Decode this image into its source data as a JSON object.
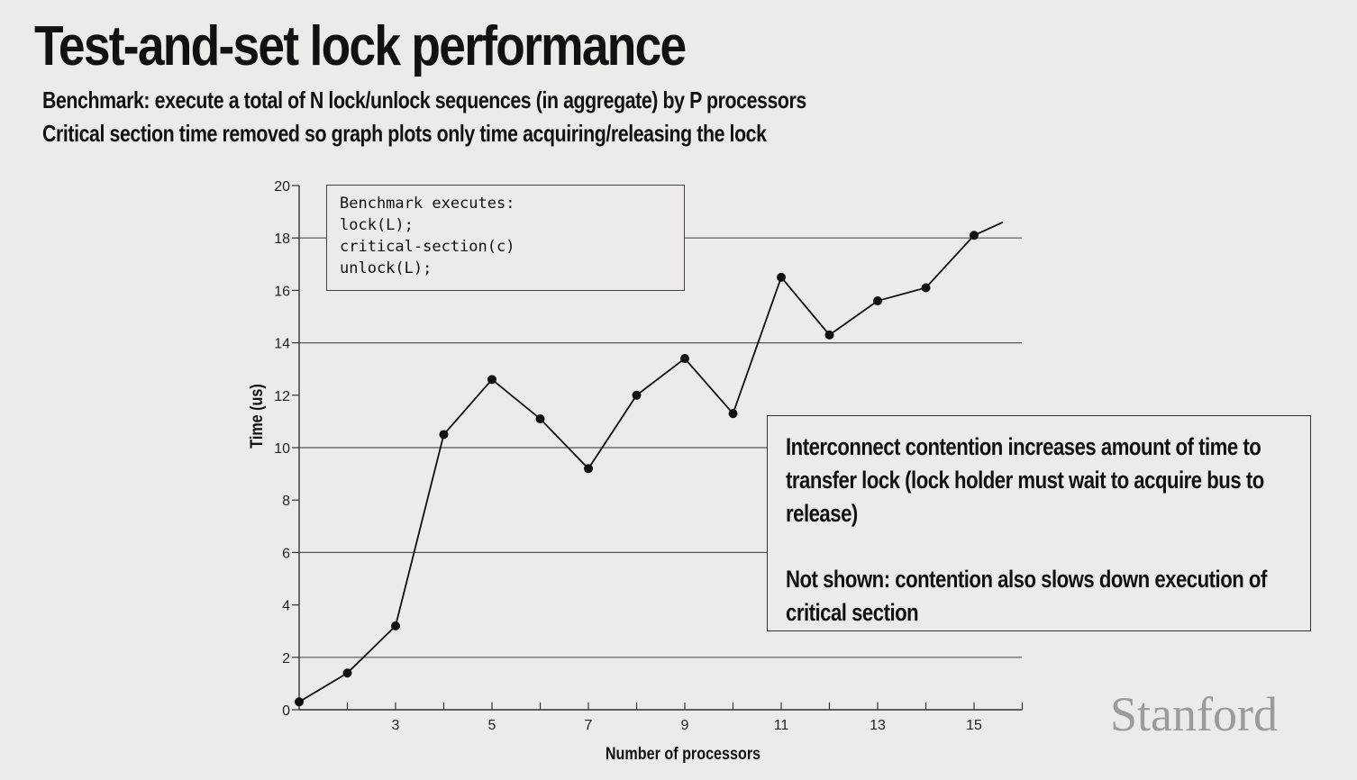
{
  "slide": {
    "title": "Test-and-set lock performance",
    "subtitle1": "Benchmark: execute a total of N lock/unlock sequences (in aggregate) by P processors",
    "subtitle2": "Critical section time removed so graph plots only time acquiring/releasing the lock",
    "logo": "Stanford"
  },
  "code_box": {
    "lines": [
      "Benchmark executes:",
      "lock(L);",
      "critical-section(c)",
      "unlock(L);"
    ]
  },
  "note": {
    "paragraph1": "Interconnect contention increases amount of time to transfer lock (lock holder must wait to acquire bus to release)",
    "paragraph2": "Not shown: contention also slows down execution of critical section"
  },
  "chart_data": {
    "type": "line",
    "xlabel": "Number of processors",
    "ylabel": "Time (us)",
    "xlim": [
      1,
      16
    ],
    "ylim": [
      0,
      20
    ],
    "x_ticks": [
      3,
      5,
      7,
      9,
      11,
      13,
      15
    ],
    "y_ticks": [
      0,
      2,
      4,
      6,
      8,
      10,
      12,
      14,
      16,
      18,
      20
    ],
    "grid": "horizontal",
    "series": [
      {
        "x": [
          1,
          2,
          3,
          4,
          5,
          6,
          7,
          8,
          9,
          10,
          11,
          12,
          13,
          14,
          15,
          15.6
        ],
        "y": [
          0.3,
          1.4,
          3.2,
          10.5,
          12.6,
          11.1,
          9.2,
          12.0,
          13.4,
          11.3,
          16.5,
          14.3,
          15.6,
          16.1,
          18.1,
          18.6
        ],
        "markers": [
          true,
          true,
          true,
          true,
          true,
          true,
          true,
          true,
          true,
          true,
          true,
          true,
          true,
          true,
          true,
          false
        ]
      }
    ]
  }
}
